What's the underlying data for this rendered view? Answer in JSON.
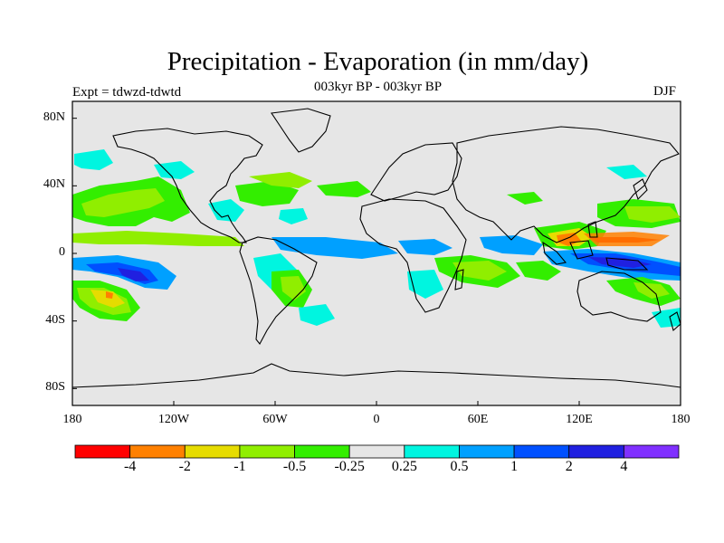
{
  "header": {
    "title": "Precipitation - Evaporation (in mm/day)",
    "subtitle": "003kyr BP - 003kyr BP",
    "experiment": "Expt = tdwzd-tdwtd",
    "season": "DJF"
  },
  "map": {
    "projection": "cylindrical-equidistant",
    "lon_range": [
      -180,
      180
    ],
    "lat_range": [
      -90,
      90
    ],
    "background_color": "#e6e6e6",
    "lat_ticks": [
      {
        "value": 80,
        "label": "80N"
      },
      {
        "value": 40,
        "label": "40N"
      },
      {
        "value": 0,
        "label": "0"
      },
      {
        "value": -40,
        "label": "40S"
      },
      {
        "value": -80,
        "label": "80S"
      }
    ],
    "lon_ticks": [
      {
        "value": -180,
        "label": "180"
      },
      {
        "value": -120,
        "label": "120W"
      },
      {
        "value": -60,
        "label": "60W"
      },
      {
        "value": 0,
        "label": "0"
      },
      {
        "value": 60,
        "label": "60E"
      },
      {
        "value": 120,
        "label": "120E"
      },
      {
        "value": 180,
        "label": "180"
      }
    ]
  },
  "colorbar": {
    "colors": [
      "#ff0000",
      "#ff8000",
      "#e6dc00",
      "#90ee00",
      "#33ee00",
      "#e6e6e6",
      "#00f5e0",
      "#00a0ff",
      "#0050ff",
      "#2020e0",
      "#8030ff"
    ],
    "labels": [
      "-4",
      "-2",
      "-1",
      "-0.5",
      "-0.25",
      "0.25",
      "0.5",
      "1",
      "2",
      "4"
    ]
  }
}
